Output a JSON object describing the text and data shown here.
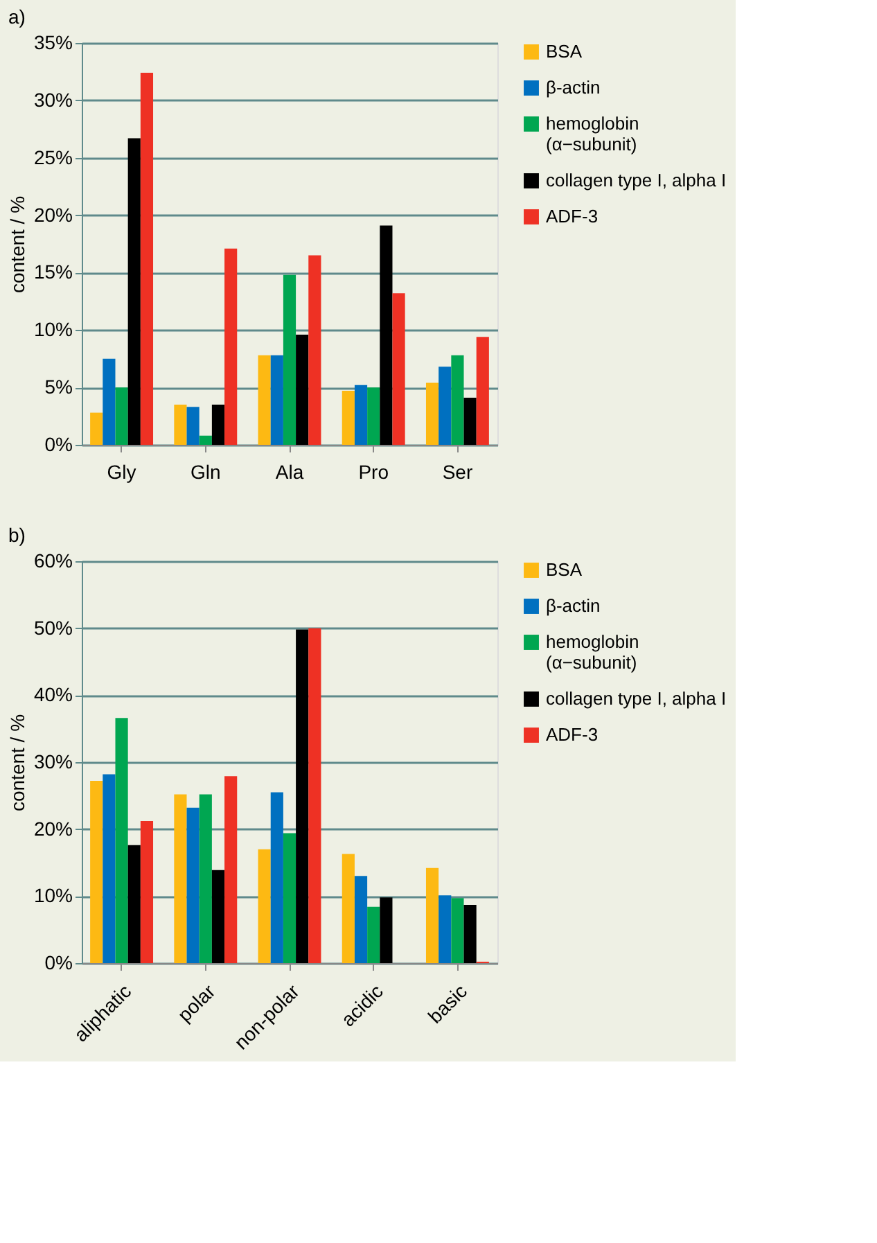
{
  "chart_data": [
    {
      "type": "bar",
      "title": "a)",
      "ylabel": "content / %",
      "categories": [
        "Gly",
        "Gln",
        "Ala",
        "Pro",
        "Ser"
      ],
      "series": [
        {
          "name": "BSA",
          "color": "#fdb913",
          "values": [
            2.8,
            3.5,
            7.8,
            4.7,
            5.4
          ]
        },
        {
          "name": "β-actin",
          "color": "#0070c0",
          "values": [
            7.5,
            3.3,
            7.8,
            5.2,
            6.8
          ]
        },
        {
          "name": "hemoglobin\n(α−subunit)",
          "color": "#00a651",
          "values": [
            5.0,
            0.8,
            14.8,
            5.0,
            7.8
          ]
        },
        {
          "name": "collagen type I, alpha I",
          "color": "#000000",
          "values": [
            26.7,
            3.5,
            9.6,
            19.1,
            4.1
          ]
        },
        {
          "name": "ADF-3",
          "color": "#ee3124",
          "values": [
            32.4,
            17.1,
            16.5,
            13.2,
            9.4
          ]
        }
      ],
      "ylim": [
        0,
        35
      ],
      "yticks": [
        {
          "value": 0,
          "label": "0%"
        },
        {
          "value": 5,
          "label": "5%"
        },
        {
          "value": 10,
          "label": "10%"
        },
        {
          "value": 15,
          "label": "15%"
        },
        {
          "value": 20,
          "label": "20%"
        },
        {
          "value": 25,
          "label": "25%"
        },
        {
          "value": 30,
          "label": "30%"
        },
        {
          "value": 35,
          "label": "35%"
        }
      ],
      "grid": "y",
      "legend": "right"
    },
    {
      "type": "bar",
      "title": "b)",
      "ylabel": "content / %",
      "categories": [
        "aliphatic",
        "polar",
        "non-polar",
        "acidic",
        "basic"
      ],
      "series": [
        {
          "name": "BSA",
          "color": "#fdb913",
          "values": [
            27.2,
            25.2,
            17.0,
            16.3,
            14.2
          ]
        },
        {
          "name": "β-actin",
          "color": "#0070c0",
          "values": [
            28.2,
            23.2,
            25.5,
            13.0,
            10.1
          ]
        },
        {
          "name": "hemoglobin\n(α−subunit)",
          "color": "#00a651",
          "values": [
            36.6,
            25.2,
            19.4,
            8.4,
            9.7
          ]
        },
        {
          "name": "collagen type I, alpha I",
          "color": "#000000",
          "values": [
            17.6,
            13.9,
            49.8,
            9.8,
            8.7
          ]
        },
        {
          "name": "ADF-3",
          "color": "#ee3124",
          "values": [
            21.2,
            27.9,
            50.0,
            0,
            0.2
          ]
        }
      ],
      "ylim": [
        0,
        60
      ],
      "yticks": [
        {
          "value": 0,
          "label": "0%"
        },
        {
          "value": 10,
          "label": "10%"
        },
        {
          "value": 20,
          "label": "20%"
        },
        {
          "value": 30,
          "label": "30%"
        },
        {
          "value": 40,
          "label": "40%"
        },
        {
          "value": 50,
          "label": "50%"
        },
        {
          "value": 60,
          "label": "60%"
        }
      ],
      "grid": "y",
      "legend": "right"
    }
  ]
}
